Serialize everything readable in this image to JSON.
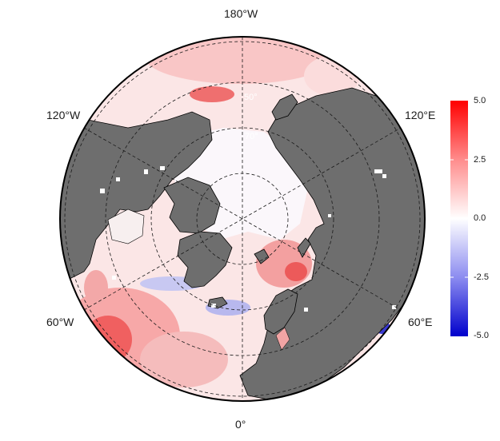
{
  "map": {
    "projection": "north-polar-stereographic",
    "ocean_fill": "sea-surface anomaly, diverging red-white-blue",
    "land_color": "#6e6e6e",
    "boundary_color": "#000000",
    "graticule_style": "dashed"
  },
  "longitude_labels": {
    "top": "180°W",
    "upper_left": "120°W",
    "upper_right": "120°E",
    "lower_left": "60°W",
    "lower_right": "60°E",
    "bottom": "0°"
  },
  "latitude_labels": {
    "outer": "50°",
    "inner": "70°"
  },
  "colorbar": {
    "range": [
      -5.0,
      5.0
    ],
    "colors": {
      "high": "#ff0000",
      "mid": "#ffffff",
      "low": "#0000cc"
    },
    "ticks": [
      "5.0",
      "2.5",
      "0.0",
      "-2.5",
      "-5.0"
    ]
  }
}
